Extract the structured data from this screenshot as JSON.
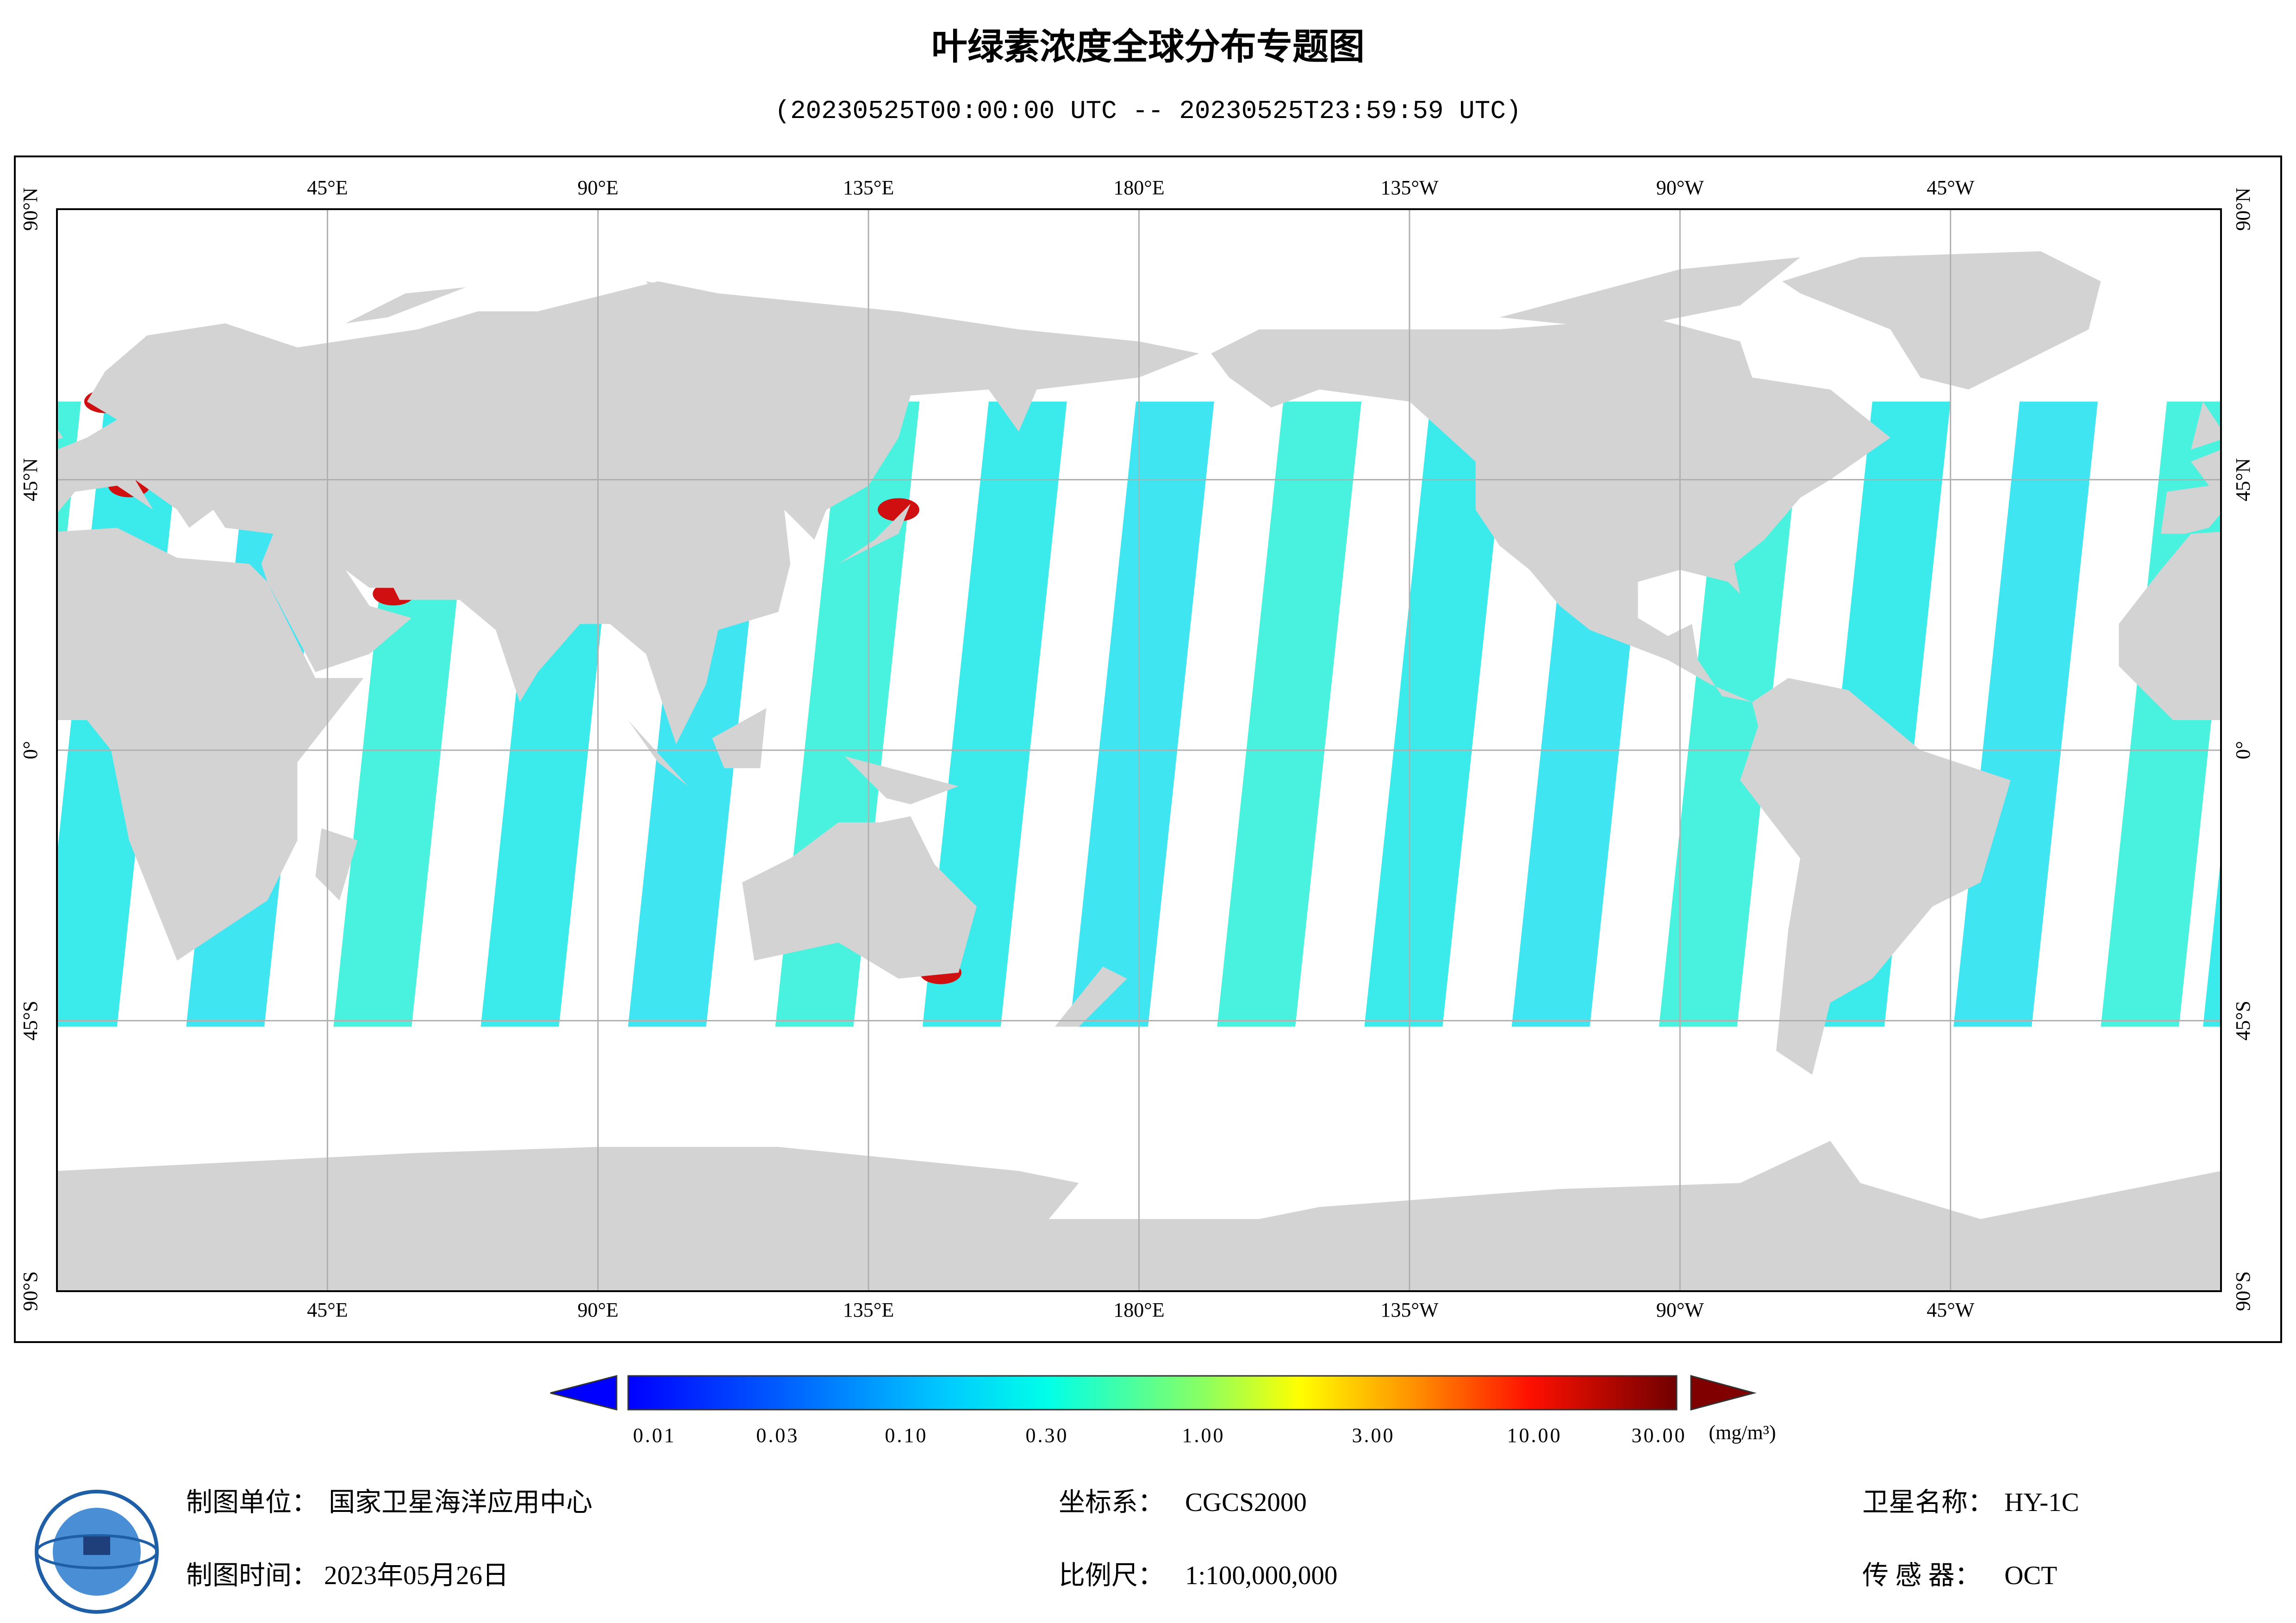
{
  "header": {
    "title": "叶绿素浓度全球分布专题图",
    "subtitle": "(20230525T00:00:00 UTC -- 20230525T23:59:59 UTC)"
  },
  "map": {
    "lon_labels": [
      "45°E",
      "90°E",
      "135°E",
      "180°E",
      "135°W",
      "90°W",
      "45°W"
    ],
    "lat_labels": [
      "90°N",
      "45°N",
      "0°",
      "45°S",
      "90°S"
    ]
  },
  "legend": {
    "labels": [
      "0.01",
      "0.03",
      "0.10",
      "0.30",
      "1.00",
      "3.00",
      "10.00",
      "30.00"
    ],
    "unit": "(mg/m³)"
  },
  "footer": {
    "unit_label": "制图单位：",
    "unit_value": "国家卫星海洋应用中心",
    "date_label": "制图时间：",
    "date_value": "2023年05月26日",
    "crs_label": "坐标系：",
    "crs_value": "CGCS2000",
    "scale_label": "比例尺：",
    "scale_value": "1:100,000,000",
    "sat_label": "卫星名称：",
    "sat_value": "HY-1C",
    "sensor_label": "传 感 器：",
    "sensor_value": "OCT"
  }
}
